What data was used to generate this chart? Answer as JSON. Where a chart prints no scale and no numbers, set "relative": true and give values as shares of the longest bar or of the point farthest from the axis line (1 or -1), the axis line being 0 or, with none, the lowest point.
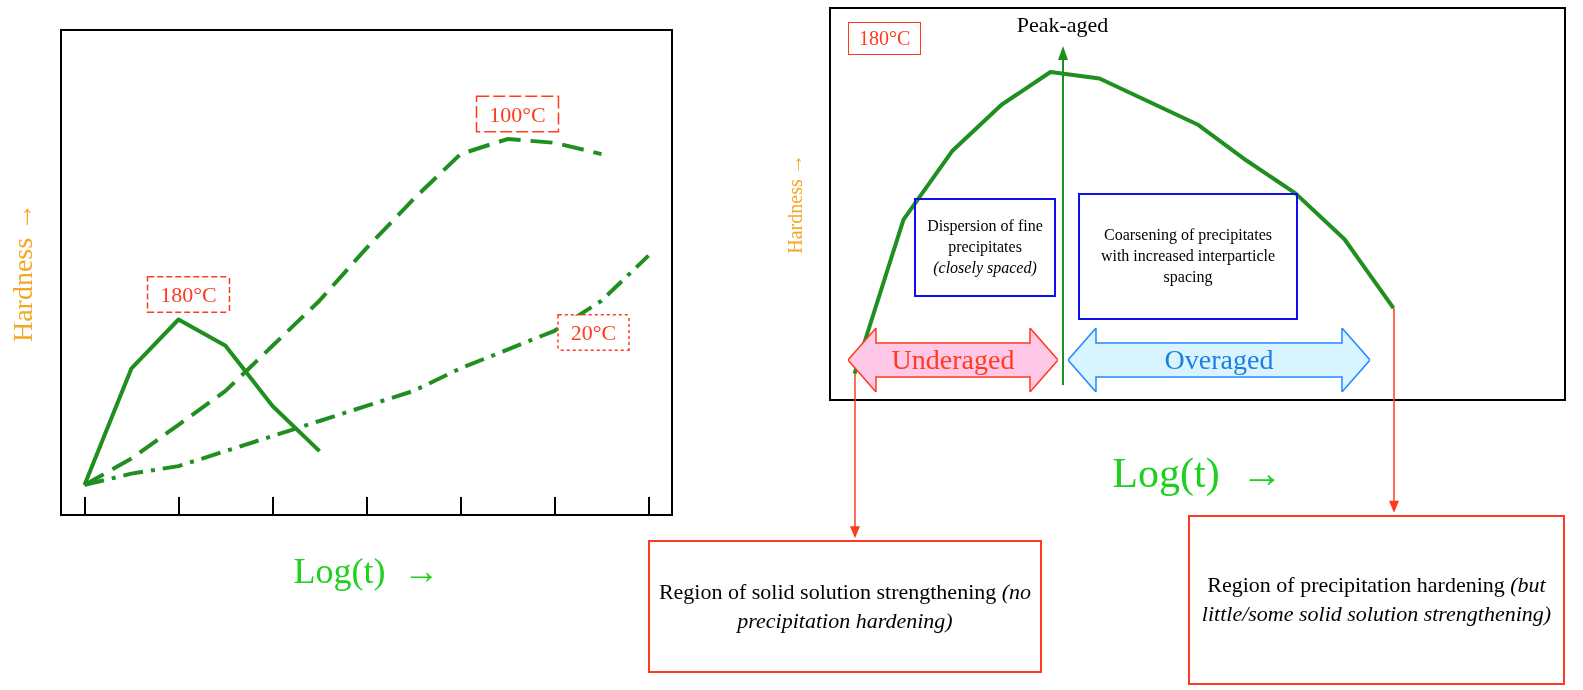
{
  "chart_data": [
    {
      "type": "line",
      "relative": true,
      "xlabel": "Log(t)  →",
      "ylabel": "Hardness →",
      "legend": false,
      "grid": false,
      "categories": [
        null,
        null,
        null,
        null,
        null,
        null,
        null,
        null,
        null,
        null,
        null,
        null,
        null
      ],
      "series": [
        {
          "name": "180°C",
          "color": "#1f8f1f",
          "line_style": "solid",
          "values": [
            0.08,
            0.39,
            0.52,
            0.45,
            0.29,
            0.17,
            null,
            null,
            null,
            null,
            null,
            null,
            null
          ]
        },
        {
          "name": "100°C",
          "color": "#1f8f1f",
          "line_style": "dashed",
          "values": [
            0.08,
            0.15,
            0.24,
            0.33,
            0.45,
            0.57,
            0.71,
            0.84,
            0.96,
            1.0,
            0.99,
            0.96,
            null
          ]
        },
        {
          "name": "20°C",
          "color": "#1f8f1f",
          "line_style": "dotted",
          "values": [
            0.08,
            0.11,
            0.13,
            0.17,
            0.21,
            0.25,
            0.29,
            0.33,
            0.39,
            0.44,
            0.49,
            0.57,
            0.69
          ]
        }
      ]
    },
    {
      "type": "line",
      "relative": true,
      "xlabel": "Log(t)  →",
      "ylabel": "Hardness →",
      "legend": false,
      "grid": false,
      "categories": [
        null,
        null,
        null,
        null,
        null,
        null,
        null,
        null,
        null,
        null,
        null,
        null,
        null,
        null,
        null
      ],
      "series": [
        {
          "name": "180°C",
          "color": "#1f8f1f",
          "line_style": "solid",
          "values": [
            0.08,
            0.55,
            0.76,
            0.9,
            1.0,
            0.98,
            0.91,
            0.84,
            0.73,
            0.63,
            0.49,
            0.28,
            null,
            null,
            null
          ]
        }
      ],
      "annotations": [
        "Peak-aged",
        "Dispersion of fine precipitates (closely spaced)",
        "Coarsening of precipitates with increased interparticle spacing",
        "Underaged",
        "Overaged",
        "Region of solid solution strengthening (no precipitation hardening)",
        "Region of precipitation hardening (but little/some solid solution strengthening)"
      ]
    }
  ]
}
